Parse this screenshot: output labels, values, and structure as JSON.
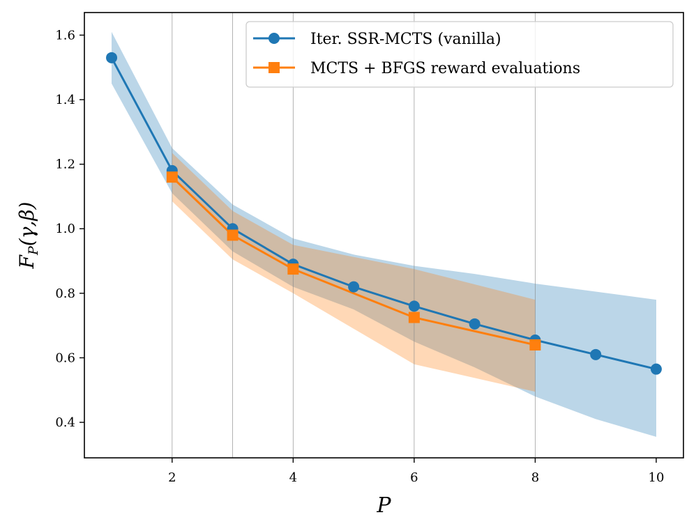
{
  "chart_data": {
    "type": "line",
    "xlabel": "P",
    "ylabel": "F_P(γ,β)",
    "ylabel_main": "F",
    "ylabel_sub": "P",
    "ylabel_args": "(γ,β)",
    "xlim": [
      0.55,
      10.45
    ],
    "ylim": [
      0.29,
      1.67
    ],
    "xticks": [
      2,
      4,
      6,
      8,
      10
    ],
    "yticks": [
      0.4,
      0.6,
      0.8,
      1.0,
      1.2,
      1.4,
      1.6
    ],
    "xtick_labels": [
      "2",
      "4",
      "6",
      "8",
      "10"
    ],
    "ytick_labels": [
      "0.4",
      "0.6",
      "0.8",
      "1.0",
      "1.2",
      "1.4",
      "1.6"
    ],
    "vertical_gridlines": [
      2,
      3,
      4,
      6,
      8
    ],
    "legend_position": "top-right",
    "series": [
      {
        "name": "Iter. SSR-MCTS (vanilla)",
        "color": "#1f77b4",
        "band_color": "#1f77b4",
        "marker": "circle",
        "x": [
          1,
          2,
          3,
          4,
          5,
          6,
          7,
          8,
          9,
          10
        ],
        "values": [
          1.53,
          1.18,
          1.0,
          0.89,
          0.82,
          0.76,
          0.705,
          0.655,
          0.61,
          0.565
        ],
        "lower": [
          1.45,
          1.11,
          0.93,
          0.82,
          0.75,
          0.65,
          0.57,
          0.48,
          0.41,
          0.355
        ],
        "upper": [
          1.61,
          1.25,
          1.075,
          0.97,
          0.92,
          0.885,
          0.86,
          0.83,
          0.805,
          0.78
        ]
      },
      {
        "name": "MCTS + BFGS reward evaluations",
        "color": "#ff7f0e",
        "band_color": "#ff7f0e",
        "marker": "square",
        "x": [
          2,
          3,
          4,
          6,
          8
        ],
        "values": [
          1.16,
          0.98,
          0.875,
          0.725,
          0.64
        ],
        "lower": [
          1.085,
          0.905,
          0.8,
          0.58,
          0.495
        ],
        "upper": [
          1.235,
          1.055,
          0.95,
          0.875,
          0.78
        ]
      }
    ]
  }
}
